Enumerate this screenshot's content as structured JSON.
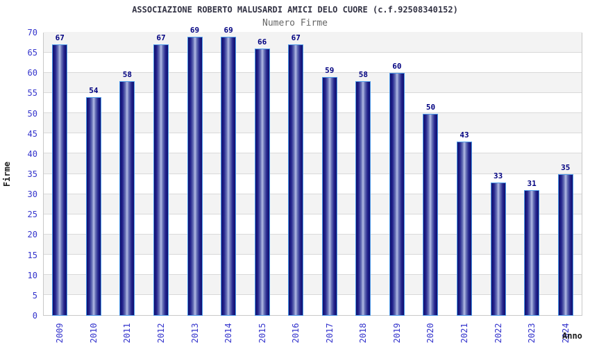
{
  "chart_data": {
    "type": "bar",
    "title": "ASSOCIAZIONE ROBERTO MALUSARDI AMICI DELO CUORE (c.f.92508340152)",
    "subtitle": "Numero Firme",
    "xlabel": "Anno",
    "ylabel": "Firme",
    "categories": [
      "2009",
      "2010",
      "2011",
      "2012",
      "2013",
      "2014",
      "2015",
      "2016",
      "2017",
      "2018",
      "2019",
      "2020",
      "2021",
      "2022",
      "2023",
      "2024"
    ],
    "values": [
      67,
      54,
      58,
      67,
      69,
      69,
      66,
      67,
      59,
      58,
      60,
      50,
      43,
      33,
      31,
      35
    ],
    "ylim": [
      0,
      70
    ],
    "ytick_step": 5,
    "grid": true,
    "legend_position": "none",
    "bar_labels_shown": true
  },
  "colors": {
    "tick_label": "#3333cc",
    "value_label": "#000080",
    "title": "#333344",
    "subtitle": "#666666",
    "axis_title": "#1a1a1a",
    "band_gray": "#f3f3f3",
    "band_white": "#ffffff",
    "gridline": "#d9d9d9",
    "plot_border": "#c8c8c8",
    "bar_border": "#4d9ae8",
    "bar_edge": "#0f0f6e",
    "bar_center": "#b4bce6"
  }
}
